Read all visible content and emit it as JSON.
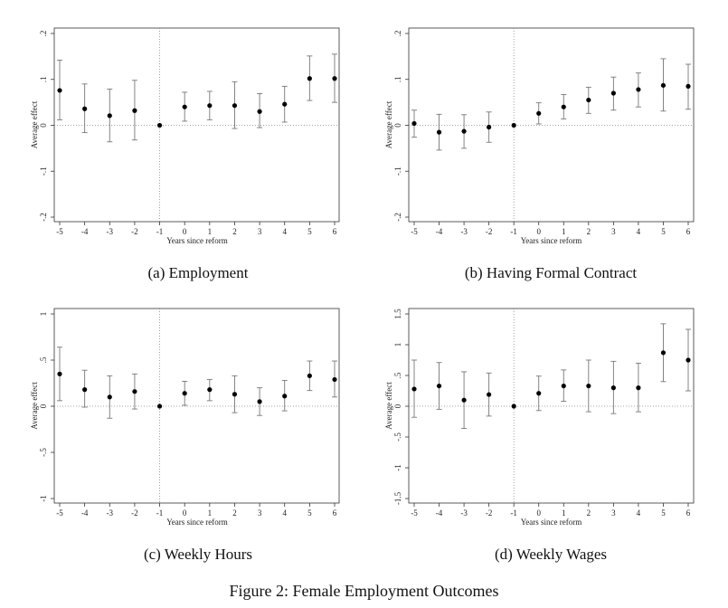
{
  "figure_caption": "Figure 2: Female Employment Outcomes",
  "chart_data": [
    {
      "type": "scatter",
      "caption": "(a) Employment",
      "xlabel": "Years since reform",
      "ylabel": "Average effect",
      "x": [
        -5,
        -4,
        -3,
        -2,
        -1,
        0,
        1,
        2,
        3,
        4,
        5,
        6
      ],
      "y": [
        0.076,
        0.036,
        0.021,
        0.032,
        0.0,
        0.04,
        0.043,
        0.043,
        0.03,
        0.046,
        0.102,
        0.102
      ],
      "ci_low": [
        0.012,
        -0.016,
        -0.036,
        -0.032,
        0.0,
        0.009,
        0.012,
        -0.007,
        -0.005,
        0.007,
        0.054,
        0.05
      ],
      "ci_high": [
        0.142,
        0.09,
        0.079,
        0.098,
        0.0,
        0.072,
        0.074,
        0.095,
        0.069,
        0.085,
        0.151,
        0.155
      ],
      "xticks": [
        "-5",
        "-4",
        "-3",
        "-2",
        "-1",
        "0",
        "1",
        "2",
        "3",
        "4",
        "5",
        "6"
      ],
      "yticks": [
        -0.2,
        -0.1,
        0,
        0.1,
        0.2
      ],
      "ytick_labels": [
        "-.2",
        "-.1",
        "0",
        ".1",
        ".2"
      ],
      "ylim": [
        -0.2,
        0.2
      ],
      "xlim": [
        -5,
        6
      ],
      "reference_lines": {
        "vertical_x": -1,
        "horizontal_y": 0
      }
    },
    {
      "type": "scatter",
      "caption": "(b) Having Formal Contract",
      "xlabel": "Years since reform",
      "ylabel": "Average effect",
      "x": [
        -5,
        -4,
        -3,
        -2,
        -1,
        0,
        1,
        2,
        3,
        4,
        5,
        6
      ],
      "y": [
        0.004,
        -0.015,
        -0.013,
        -0.004,
        0.0,
        0.026,
        0.04,
        0.055,
        0.07,
        0.078,
        0.087,
        0.085
      ],
      "ci_low": [
        -0.026,
        -0.054,
        -0.05,
        -0.037,
        0.0,
        0.003,
        0.014,
        0.026,
        0.033,
        0.04,
        0.031,
        0.035
      ],
      "ci_high": [
        0.033,
        0.024,
        0.023,
        0.029,
        0.0,
        0.049,
        0.067,
        0.083,
        0.105,
        0.114,
        0.145,
        0.133
      ],
      "xticks": [
        "-5",
        "-4",
        "-3",
        "-2",
        "-1",
        "0",
        "1",
        "2",
        "3",
        "4",
        "5",
        "6"
      ],
      "yticks": [
        -0.2,
        -0.1,
        0,
        0.1,
        0.2
      ],
      "ytick_labels": [
        "-.2",
        "-.1",
        "0",
        ".1",
        ".2"
      ],
      "ylim": [
        -0.2,
        0.2
      ],
      "xlim": [
        -5,
        6
      ],
      "reference_lines": {
        "vertical_x": -1,
        "horizontal_y": 0
      }
    },
    {
      "type": "scatter",
      "caption": "(c) Weekly Hours",
      "xlabel": "Years since reform",
      "ylabel": "Average effect",
      "x": [
        -5,
        -4,
        -3,
        -2,
        -1,
        0,
        1,
        2,
        3,
        4,
        5,
        6
      ],
      "y": [
        0.35,
        0.18,
        0.1,
        0.16,
        0.0,
        0.14,
        0.18,
        0.13,
        0.05,
        0.11,
        0.33,
        0.29
      ],
      "ci_low": [
        0.06,
        -0.01,
        -0.13,
        -0.03,
        0.0,
        0.01,
        0.06,
        -0.07,
        -0.1,
        -0.05,
        0.17,
        0.1
      ],
      "ci_high": [
        0.64,
        0.39,
        0.33,
        0.35,
        0.0,
        0.27,
        0.29,
        0.33,
        0.2,
        0.28,
        0.49,
        0.49
      ],
      "xticks": [
        "-5",
        "-4",
        "-3",
        "-2",
        "-1",
        "0",
        "1",
        "2",
        "3",
        "4",
        "5",
        "6"
      ],
      "yticks": [
        -1,
        -0.5,
        0,
        0.5,
        1
      ],
      "ytick_labels": [
        "-1",
        "-.5",
        "0",
        ".5",
        "1"
      ],
      "ylim": [
        -1,
        1
      ],
      "xlim": [
        -5,
        6
      ],
      "reference_lines": {
        "vertical_x": -1,
        "horizontal_y": 0
      }
    },
    {
      "type": "scatter",
      "caption": "(d) Weekly Wages",
      "xlabel": "Years since reform",
      "ylabel": "Average effect",
      "x": [
        -5,
        -4,
        -3,
        -2,
        -1,
        0,
        1,
        2,
        3,
        4,
        5,
        6
      ],
      "y": [
        0.28,
        0.33,
        0.1,
        0.19,
        0.0,
        0.21,
        0.33,
        0.33,
        0.3,
        0.3,
        0.87,
        0.75
      ],
      "ci_low": [
        -0.18,
        -0.05,
        -0.36,
        -0.16,
        0.0,
        -0.07,
        0.08,
        -0.09,
        -0.12,
        -0.09,
        0.4,
        0.25
      ],
      "ci_high": [
        0.75,
        0.71,
        0.56,
        0.54,
        0.0,
        0.49,
        0.59,
        0.75,
        0.73,
        0.7,
        1.34,
        1.25
      ],
      "xticks": [
        "-5",
        "-4",
        "-3",
        "-2",
        "-1",
        "0",
        "1",
        "2",
        "3",
        "4",
        "5",
        "6"
      ],
      "yticks": [
        -1.5,
        -1,
        -0.5,
        0,
        0.5,
        1,
        1.5
      ],
      "ytick_labels": [
        "-1.5",
        "-1",
        "-.5",
        "0",
        ".5",
        "1",
        "1.5"
      ],
      "ylim": [
        -1.5,
        1.5
      ],
      "xlim": [
        -5,
        6
      ],
      "reference_lines": {
        "vertical_x": -1,
        "horizontal_y": 0
      }
    }
  ]
}
